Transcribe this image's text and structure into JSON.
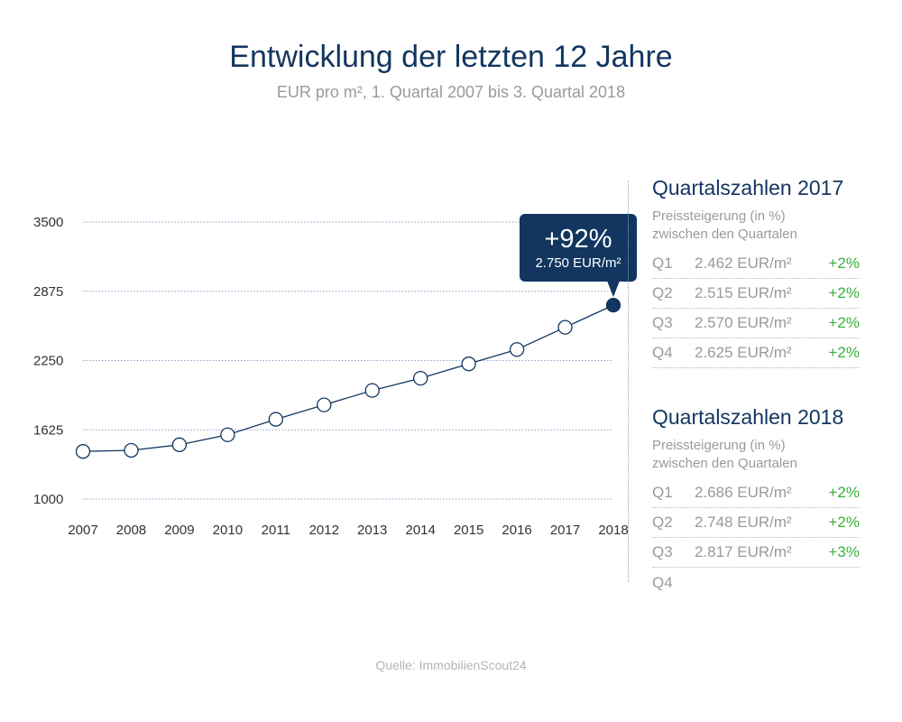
{
  "chart_data": {
    "type": "line",
    "title": "Entwicklung der letzten 12 Jahre",
    "subtitle": "EUR pro m², 1. Quartal 2007 bis 3. Quartal 2018",
    "categories": [
      "2007",
      "2008",
      "2009",
      "2010",
      "2011",
      "2012",
      "2013",
      "2014",
      "2015",
      "2016",
      "2017",
      "2018"
    ],
    "values": [
      1430,
      1440,
      1490,
      1580,
      1720,
      1850,
      1980,
      2090,
      2220,
      2350,
      2550,
      2750
    ],
    "yticks": [
      "3500",
      "2875",
      "2250",
      "1625",
      "1000"
    ],
    "ylim": [
      1000,
      3500
    ],
    "grid": true,
    "line_color": "#12365f",
    "highlight": {
      "index": 11,
      "pct": "+92%",
      "value": "2.750 EUR/m²"
    }
  },
  "panels": [
    {
      "title": "Quartalszahlen 2017",
      "desc_line1": "Preissteigerung (in %)",
      "desc_line2": "zwischen den Quartalen",
      "rows": [
        {
          "q": "Q1",
          "v": "2.462 EUR/m²",
          "c": "+2%"
        },
        {
          "q": "Q2",
          "v": "2.515 EUR/m²",
          "c": "+2%"
        },
        {
          "q": "Q3",
          "v": "2.570 EUR/m²",
          "c": "+2%"
        },
        {
          "q": "Q4",
          "v": "2.625 EUR/m²",
          "c": "+2%"
        }
      ]
    },
    {
      "title": "Quartalszahlen 2018",
      "desc_line1": "Preissteigerung (in %)",
      "desc_line2": "zwischen den Quartalen",
      "rows": [
        {
          "q": "Q1",
          "v": "2.686 EUR/m²",
          "c": "+2%"
        },
        {
          "q": "Q2",
          "v": "2.748 EUR/m²",
          "c": "+2%"
        },
        {
          "q": "Q3",
          "v": "2.817 EUR/m²",
          "c": "+3%"
        },
        {
          "q": "Q4",
          "v": "",
          "c": ""
        }
      ]
    }
  ],
  "source": "Quelle: ImmobilienScout24"
}
